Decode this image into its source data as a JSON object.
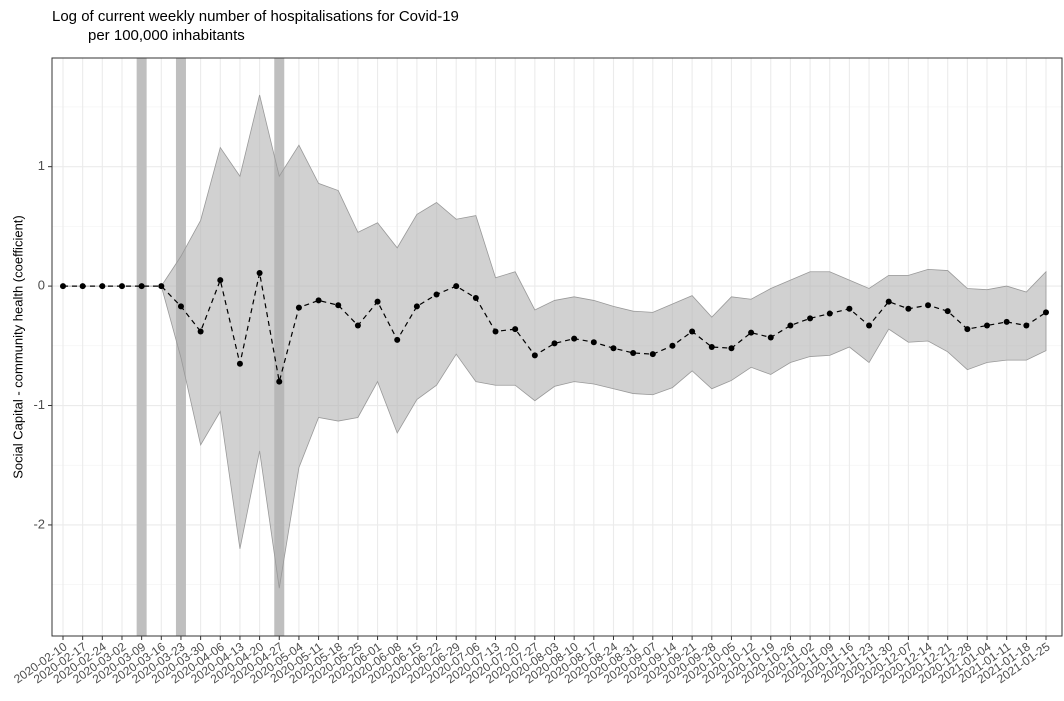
{
  "chart_data": {
    "type": "line",
    "title": [
      "Log of current weekly number of hospitalisations for Covid-19",
      "per 100,000 inhabitants"
    ],
    "y_label": "Social Capital - community health (coefficient)",
    "categories": [
      "2020-02-10",
      "2020-02-17",
      "2020-02-24",
      "2020-03-02",
      "2020-03-09",
      "2020-03-16",
      "2020-03-23",
      "2020-03-30",
      "2020-04-06",
      "2020-04-13",
      "2020-04-20",
      "2020-04-27",
      "2020-05-04",
      "2020-05-11",
      "2020-05-18",
      "2020-05-25",
      "2020-06-01",
      "2020-06-08",
      "2020-06-15",
      "2020-06-22",
      "2020-06-29",
      "2020-07-06",
      "2020-07-13",
      "2020-07-20",
      "2020-07-27",
      "2020-08-03",
      "2020-08-10",
      "2020-08-17",
      "2020-08-24",
      "2020-08-31",
      "2020-09-07",
      "2020-09-14",
      "2020-09-21",
      "2020-09-28",
      "2020-10-05",
      "2020-10-12",
      "2020-10-19",
      "2020-10-26",
      "2020-11-02",
      "2020-11-09",
      "2020-11-16",
      "2020-11-23",
      "2020-11-30",
      "2020-12-07",
      "2020-12-14",
      "2020-12-21",
      "2020-12-28",
      "2021-01-04",
      "2021-01-11",
      "2021-01-18",
      "2021-01-25"
    ],
    "values": [
      0,
      0,
      0,
      0,
      0,
      0,
      -0.17,
      -0.38,
      0.05,
      -0.65,
      0.11,
      -0.8,
      -0.18,
      -0.12,
      -0.16,
      -0.33,
      -0.13,
      -0.45,
      -0.17,
      -0.07,
      0.0,
      -0.1,
      -0.38,
      -0.36,
      -0.58,
      -0.48,
      -0.44,
      -0.47,
      -0.52,
      -0.56,
      -0.57,
      -0.5,
      -0.38,
      -0.51,
      -0.52,
      -0.39,
      -0.43,
      -0.33,
      -0.27,
      -0.23,
      -0.19,
      -0.33,
      -0.13,
      -0.19,
      -0.16,
      -0.21,
      -0.36,
      -0.33,
      -0.3,
      -0.33,
      -0.22
    ],
    "upper": [
      0,
      0,
      0,
      0,
      0,
      0,
      0.25,
      0.55,
      1.16,
      0.92,
      1.6,
      0.92,
      1.18,
      0.86,
      0.8,
      0.45,
      0.53,
      0.32,
      0.6,
      0.7,
      0.56,
      0.59,
      0.07,
      0.12,
      -0.2,
      -0.12,
      -0.09,
      -0.12,
      -0.17,
      -0.21,
      -0.22,
      -0.15,
      -0.08,
      -0.26,
      -0.09,
      -0.11,
      -0.02,
      0.05,
      0.12,
      0.12,
      0.05,
      -0.02,
      0.09,
      0.09,
      0.14,
      0.13,
      -0.02,
      -0.03,
      0.0,
      -0.05,
      0.12
    ],
    "lower": [
      0,
      0,
      0,
      0,
      0,
      0,
      -0.6,
      -1.33,
      -1.05,
      -2.2,
      -1.38,
      -2.53,
      -1.52,
      -1.1,
      -1.13,
      -1.1,
      -0.8,
      -1.23,
      -0.95,
      -0.83,
      -0.57,
      -0.8,
      -0.83,
      -0.83,
      -0.96,
      -0.84,
      -0.8,
      -0.82,
      -0.86,
      -0.9,
      -0.91,
      -0.85,
      -0.71,
      -0.86,
      -0.79,
      -0.68,
      -0.74,
      -0.64,
      -0.59,
      -0.58,
      -0.51,
      -0.64,
      -0.36,
      -0.47,
      -0.46,
      -0.55,
      -0.7,
      -0.64,
      -0.62,
      -0.62,
      -0.54
    ],
    "highlights": [
      4,
      6,
      11
    ],
    "color": "#000000",
    "band_color": "#b3b3b3",
    "highlight_color": "#bfbfbf",
    "ylim": [
      -2.93,
      1.91
    ],
    "yticks": [
      -2,
      -1,
      0,
      1
    ],
    "grid": true
  }
}
